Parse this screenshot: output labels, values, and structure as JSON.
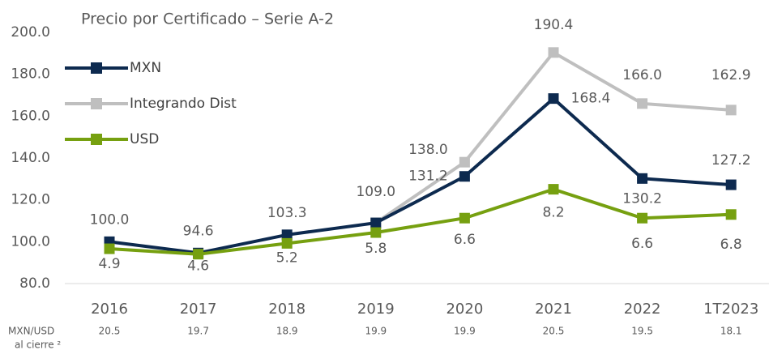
{
  "chart_data": {
    "type": "line",
    "title": "Precio por Certificado – Serie A-2",
    "categories": [
      "2016",
      "2017",
      "2018",
      "2019",
      "2020",
      "2021",
      "2022",
      "1T2023"
    ],
    "series": [
      {
        "name": "MXN",
        "color": "#0d2a4f",
        "values": [
          100.0,
          94.6,
          103.3,
          109.0,
          131.2,
          168.4,
          130.2,
          127.2
        ],
        "value_labels": [
          "100.0",
          "94.6",
          "103.3",
          null,
          "131.2",
          "168.4",
          "130.2",
          "127.2"
        ]
      },
      {
        "name": "Integrando Dist",
        "color": "#bfbfbf",
        "values": [
          null,
          null,
          null,
          109.0,
          138.0,
          190.4,
          166.0,
          162.9
        ],
        "value_labels": [
          null,
          null,
          null,
          "109.0",
          "138.0",
          "190.4",
          "166.0",
          "162.9"
        ]
      },
      {
        "name": "USD",
        "color": "#76a010",
        "axis": "y2",
        "values": [
          4.9,
          4.6,
          5.2,
          5.8,
          6.6,
          8.2,
          6.6,
          6.8
        ]
      }
    ],
    "ylim": [
      80,
      200
    ],
    "yticks": [
      {
        "value": 80,
        "label": "80.0"
      },
      {
        "value": 100,
        "label": "100.0"
      },
      {
        "value": 120,
        "label": "120.0"
      },
      {
        "value": 140,
        "label": "140.0"
      },
      {
        "value": 160,
        "label": "160.0"
      },
      {
        "value": 180,
        "label": "180.0"
      },
      {
        "value": 200,
        "label": "200.0"
      }
    ],
    "y2lim": [
      2.97,
      16.9
    ],
    "legend": "upper left",
    "fx_label": [
      "MXN/USD",
      "al cierre ²"
    ],
    "fx_values": [
      20.5,
      19.7,
      18.9,
      19.9,
      19.9,
      20.5,
      19.5,
      18.1
    ]
  }
}
